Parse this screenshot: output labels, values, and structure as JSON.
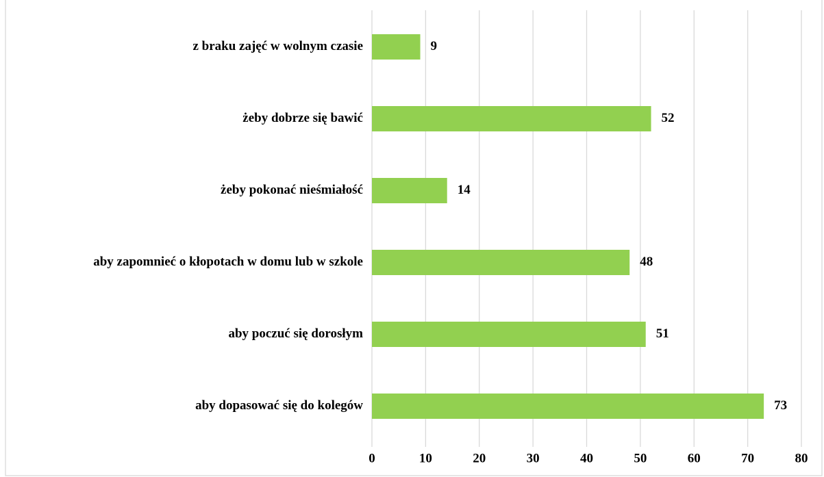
{
  "chart_data": {
    "type": "bar",
    "orientation": "horizontal",
    "categories": [
      "z braku zajęć w wolnym czasie",
      "żeby dobrze się bawić",
      "żeby pokonać nieśmiałość",
      "aby zapomnieć o kłopotach w domu lub w szkole",
      "aby poczuć się dorosłym",
      "aby dopasować się do kolegów"
    ],
    "values": [
      9,
      52,
      14,
      48,
      51,
      73
    ],
    "color": "#92d050",
    "xlim": [
      0,
      80
    ],
    "xticks": [
      0,
      10,
      20,
      30,
      40,
      50,
      60,
      70,
      80
    ],
    "grid": true
  }
}
